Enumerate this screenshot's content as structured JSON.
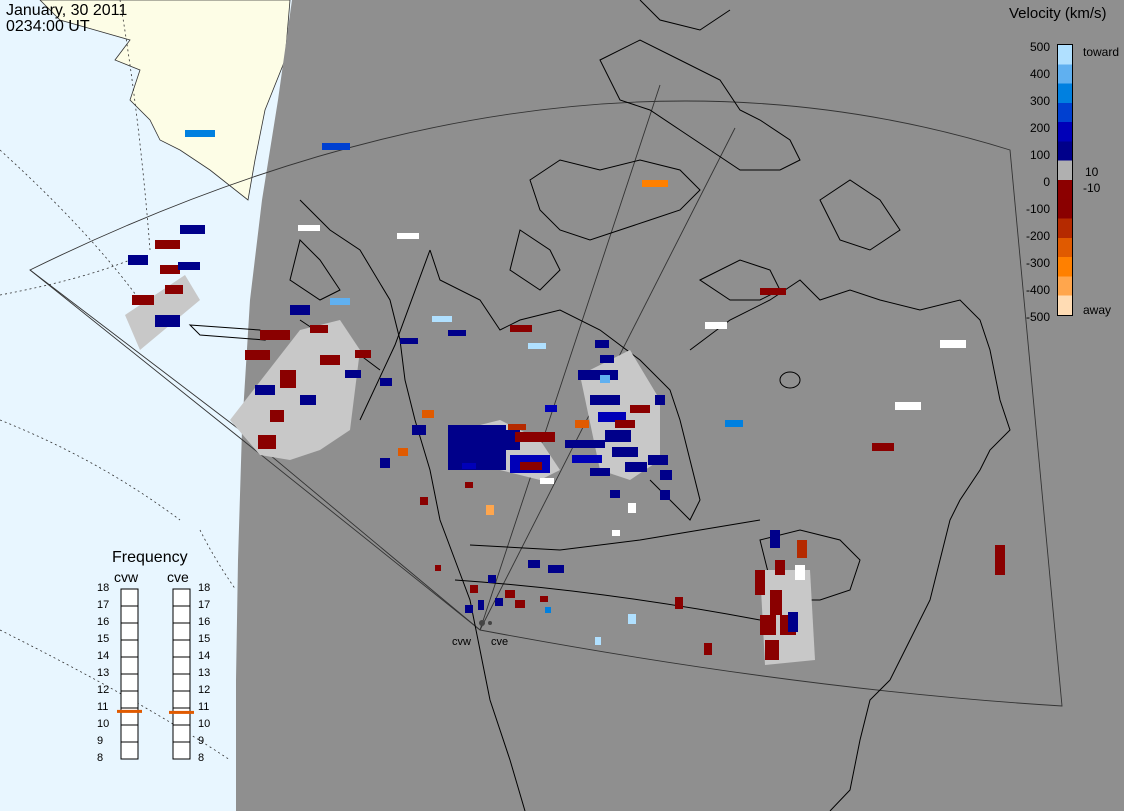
{
  "header": {
    "date": "January, 30 2011",
    "time": "0234:00 UT"
  },
  "colorbar": {
    "title": "Velocity (km/s)",
    "ticks": [
      "500",
      "400",
      "300",
      "200",
      "100",
      "0",
      "-100",
      "-200",
      "-300",
      "-400",
      "-500"
    ],
    "inner_ticks": [
      "10",
      "-10"
    ],
    "end_labels": {
      "toward": "toward",
      "away": "away"
    },
    "colors": [
      "#ffdcb4",
      "#ffa64d",
      "#ff8000",
      "#e05a00",
      "#b52a00",
      "#8a0000",
      "#8c0000",
      "#b0b0b0",
      "#00008a",
      "#0000b8",
      "#0040d0",
      "#0080e0",
      "#60b0f0",
      "#b0e0ff"
    ]
  },
  "frequency": {
    "title": "Frequency",
    "radars": [
      "cvw",
      "cve"
    ],
    "scale": [
      "18",
      "17",
      "16",
      "15",
      "14",
      "13",
      "12",
      "11",
      "10",
      "9",
      "8"
    ],
    "cvw_mhz": 10.8,
    "cve_mhz": 10.8
  },
  "sites": {
    "cvw": "cvw",
    "cve": "cve"
  },
  "map_colors": {
    "night": "#8f8f8f",
    "sea_day": "#e8f6ff",
    "land_day": "#fdfde6",
    "ground_scatter": "#c8c8c8"
  }
}
